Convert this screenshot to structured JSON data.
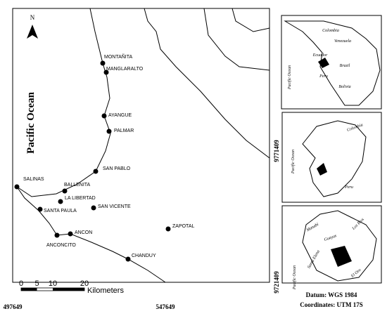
{
  "map": {
    "north": "N",
    "ocean_label": "Pacific Ocean",
    "places": [
      "MONTAÑITA",
      "MANGLARALTO",
      "AYANGUE",
      "PALMAR",
      "SAN PABLO",
      "SALINAS",
      "BALLENITA",
      "LA LIBERTAD",
      "SANTA PAULA",
      "SAN VICENTE",
      "ANCON",
      "ANCONCITO",
      "ZAPOTAL",
      "CHANDUY"
    ],
    "x_coordinates": [
      497649,
      547649
    ],
    "y_coordinates": [
      9771409,
      9721409
    ],
    "scale_bar": {
      "ticks": [
        0,
        5,
        10,
        20
      ],
      "unit": "Kilometers"
    }
  },
  "insets": [
    {
      "labels": [
        "Pacific Ocean",
        "Colombia",
        "Venezuela",
        "Ecuador",
        "Brazil",
        "Peru",
        "Bolivia"
      ]
    },
    {
      "labels": [
        "Colombia",
        "Pacific Ocean",
        "Peru"
      ]
    },
    {
      "labels": [
        "Manabí",
        "Los Ríos",
        "Guayas",
        "Santa Elena",
        "Pacific Ocean",
        "El Oro"
      ]
    }
  ],
  "footer": {
    "datum": "Datum: WGS 1984",
    "coordinates": "Coordinates: UTM 17S"
  }
}
